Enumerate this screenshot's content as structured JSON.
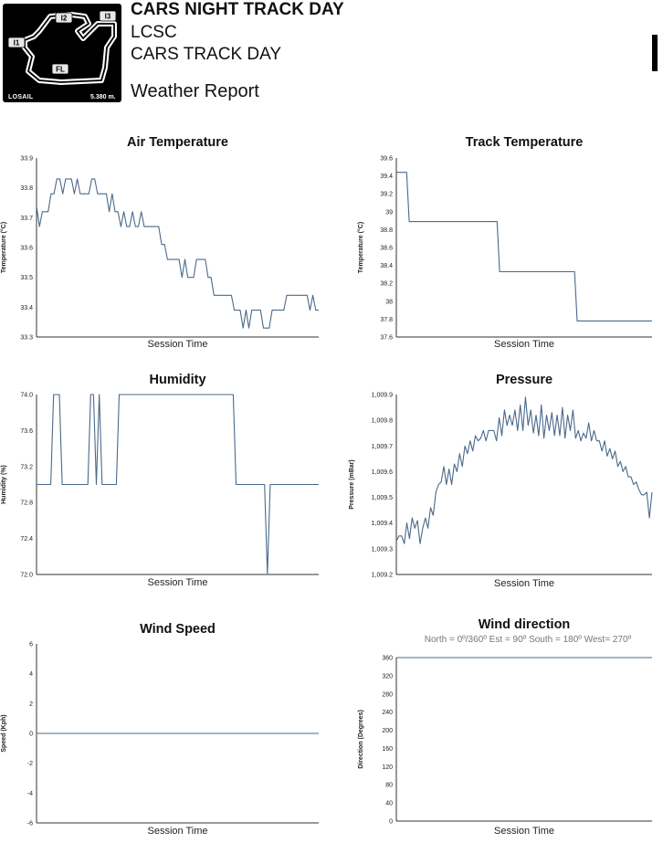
{
  "header": {
    "event_title": "CARS NIGHT TRACK DAY",
    "organizer": "LCSC",
    "subtitle": "CARS TRACK DAY",
    "report_title": "Weather Report",
    "track_logo": {
      "name": "LOSAIL",
      "length": "5.380 m.",
      "marker_labels": [
        "I1",
        "I2",
        "I3",
        "FL"
      ]
    }
  },
  "colors": {
    "series": "#4a6a8a",
    "axis": "#333333"
  },
  "chart_data": [
    {
      "type": "line",
      "title": "Air Temperature",
      "xlabel": "Session Time",
      "ylabel": "Temperature (°C)",
      "ylim": [
        33.3,
        33.9
      ],
      "yticks": [
        "33.3",
        "33.4",
        "33.5",
        "33.6",
        "33.7",
        "33.8",
        "33.9"
      ],
      "series": [
        {
          "values": [
            33.74,
            33.67,
            33.72,
            33.72,
            33.72,
            33.78,
            33.78,
            33.83,
            33.83,
            33.78,
            33.83,
            33.83,
            33.83,
            33.78,
            33.83,
            33.78,
            33.78,
            33.78,
            33.78,
            33.83,
            33.83,
            33.78,
            33.78,
            33.78,
            33.78,
            33.72,
            33.78,
            33.72,
            33.72,
            33.67,
            33.72,
            33.67,
            33.67,
            33.72,
            33.67,
            33.67,
            33.72,
            33.67,
            33.67,
            33.67,
            33.67,
            33.67,
            33.67,
            33.61,
            33.61,
            33.56,
            33.56,
            33.56,
            33.56,
            33.56,
            33.5,
            33.56,
            33.5,
            33.5,
            33.5,
            33.56,
            33.56,
            33.56,
            33.56,
            33.5,
            33.5,
            33.44,
            33.44,
            33.44,
            33.44,
            33.44,
            33.44,
            33.44,
            33.39,
            33.39,
            33.39,
            33.33,
            33.39,
            33.33,
            33.39,
            33.39,
            33.39,
            33.39,
            33.33,
            33.33,
            33.33,
            33.39,
            33.39,
            33.39,
            33.39,
            33.39,
            33.44,
            33.44,
            33.44,
            33.44,
            33.44,
            33.44,
            33.44,
            33.44,
            33.39,
            33.44,
            33.39,
            33.39
          ]
        }
      ]
    },
    {
      "type": "line",
      "title": "Track Temperature",
      "xlabel": "Session Time",
      "ylabel": "Temperature (°C)",
      "ylim": [
        37.6,
        39.6
      ],
      "yticks": [
        "37.6",
        "37.8",
        "38",
        "38.2",
        "38.4",
        "38.6",
        "38.8",
        "39",
        "39.2",
        "39.4",
        "39.6"
      ],
      "series": [
        {
          "values": [
            39.44,
            39.44,
            39.44,
            39.44,
            39.44,
            38.89,
            38.89,
            38.89,
            38.89,
            38.89,
            38.89,
            38.89,
            38.89,
            38.89,
            38.89,
            38.89,
            38.89,
            38.89,
            38.89,
            38.89,
            38.89,
            38.89,
            38.89,
            38.89,
            38.89,
            38.89,
            38.89,
            38.89,
            38.89,
            38.89,
            38.89,
            38.89,
            38.89,
            38.89,
            38.89,
            38.89,
            38.89,
            38.89,
            38.89,
            38.89,
            38.33,
            38.33,
            38.33,
            38.33,
            38.33,
            38.33,
            38.33,
            38.33,
            38.33,
            38.33,
            38.33,
            38.33,
            38.33,
            38.33,
            38.33,
            38.33,
            38.33,
            38.33,
            38.33,
            38.33,
            38.33,
            38.33,
            38.33,
            38.33,
            38.33,
            38.33,
            38.33,
            38.33,
            38.33,
            38.33,
            37.78,
            37.78,
            37.78,
            37.78,
            37.78,
            37.78,
            37.78,
            37.78,
            37.78,
            37.78,
            37.78,
            37.78,
            37.78,
            37.78,
            37.78,
            37.78,
            37.78,
            37.78,
            37.78,
            37.78,
            37.78,
            37.78,
            37.78,
            37.78,
            37.78,
            37.78,
            37.78,
            37.78,
            37.78,
            37.78
          ]
        }
      ]
    },
    {
      "type": "line",
      "title": "Humidity",
      "xlabel": "Session Time",
      "ylabel": "Humidity (%)",
      "ylim": [
        72.0,
        74.0
      ],
      "yticks": [
        "72.0",
        "72.4",
        "72.8",
        "73.2",
        "73.6",
        "74.0"
      ],
      "series": [
        {
          "values": [
            73.0,
            73.0,
            73.0,
            73.0,
            73.0,
            73.0,
            74.0,
            74.0,
            74.0,
            73.0,
            73.0,
            73.0,
            73.0,
            73.0,
            73.0,
            73.0,
            73.0,
            73.0,
            73.0,
            74.0,
            74.0,
            73.0,
            74.0,
            73.0,
            73.0,
            73.0,
            73.0,
            73.0,
            73.0,
            74.0,
            74.0,
            74.0,
            74.0,
            74.0,
            74.0,
            74.0,
            74.0,
            74.0,
            74.0,
            74.0,
            74.0,
            74.0,
            74.0,
            74.0,
            74.0,
            74.0,
            74.0,
            74.0,
            74.0,
            74.0,
            74.0,
            74.0,
            74.0,
            74.0,
            74.0,
            74.0,
            74.0,
            74.0,
            74.0,
            74.0,
            74.0,
            74.0,
            74.0,
            74.0,
            74.0,
            74.0,
            74.0,
            74.0,
            74.0,
            74.0,
            73.0,
            73.0,
            73.0,
            73.0,
            73.0,
            73.0,
            73.0,
            73.0,
            73.0,
            73.0,
            73.0,
            72.0,
            73.0,
            73.0,
            73.0,
            73.0,
            73.0,
            73.0,
            73.0,
            73.0,
            73.0,
            73.0,
            73.0,
            73.0,
            73.0,
            73.0,
            73.0,
            73.0,
            73.0,
            73.0
          ]
        }
      ]
    },
    {
      "type": "line",
      "title": "Pressure",
      "xlabel": "Session Time",
      "ylabel": "Pressure (mBar)",
      "ylim": [
        1009.2,
        1009.9
      ],
      "yticks": [
        "1,009.2",
        "1,009.3",
        "1,009.4",
        "1,009.5",
        "1,009.6",
        "1,009.7",
        "1,009.8",
        "1,009.9"
      ],
      "series": [
        {
          "values": [
            1009.33,
            1009.35,
            1009.35,
            1009.32,
            1009.4,
            1009.34,
            1009.42,
            1009.38,
            1009.41,
            1009.32,
            1009.38,
            1009.42,
            1009.38,
            1009.46,
            1009.43,
            1009.52,
            1009.55,
            1009.56,
            1009.62,
            1009.55,
            1009.61,
            1009.55,
            1009.63,
            1009.6,
            1009.67,
            1009.62,
            1009.7,
            1009.67,
            1009.72,
            1009.68,
            1009.74,
            1009.72,
            1009.73,
            1009.76,
            1009.72,
            1009.76,
            1009.76,
            1009.76,
            1009.72,
            1009.81,
            1009.74,
            1009.84,
            1009.78,
            1009.82,
            1009.78,
            1009.84,
            1009.76,
            1009.86,
            1009.76,
            1009.89,
            1009.78,
            1009.84,
            1009.75,
            1009.82,
            1009.74,
            1009.86,
            1009.73,
            1009.82,
            1009.76,
            1009.83,
            1009.74,
            1009.82,
            1009.74,
            1009.85,
            1009.73,
            1009.82,
            1009.76,
            1009.84,
            1009.73,
            1009.76,
            1009.72,
            1009.75,
            1009.73,
            1009.79,
            1009.72,
            1009.76,
            1009.72,
            1009.72,
            1009.68,
            1009.72,
            1009.66,
            1009.69,
            1009.65,
            1009.68,
            1009.62,
            1009.64,
            1009.6,
            1009.62,
            1009.58,
            1009.58,
            1009.55,
            1009.56,
            1009.53,
            1009.51,
            1009.51,
            1009.52,
            1009.42,
            1009.52
          ]
        }
      ]
    },
    {
      "type": "line",
      "title": "Wind Speed",
      "xlabel": "Session Time",
      "ylabel": "Speed (Kph)",
      "ylim": [
        -6,
        6
      ],
      "yticks": [
        "-6",
        "-4",
        "-2",
        "0",
        "2",
        "4",
        "6"
      ],
      "series": [
        {
          "values": [
            0,
            0
          ]
        }
      ]
    },
    {
      "type": "line",
      "title": "Wind direction",
      "subtitle": "North = 0º/360º    Est = 90º    South = 180º    West= 270º",
      "xlabel": "Session Time",
      "ylabel": "Direction (Degrees)",
      "ylim": [
        0,
        360
      ],
      "yticks": [
        "0",
        "40",
        "80",
        "120",
        "160",
        "200",
        "240",
        "280",
        "320",
        "360"
      ],
      "series": [
        {
          "values": [
            360,
            360
          ]
        }
      ]
    }
  ]
}
